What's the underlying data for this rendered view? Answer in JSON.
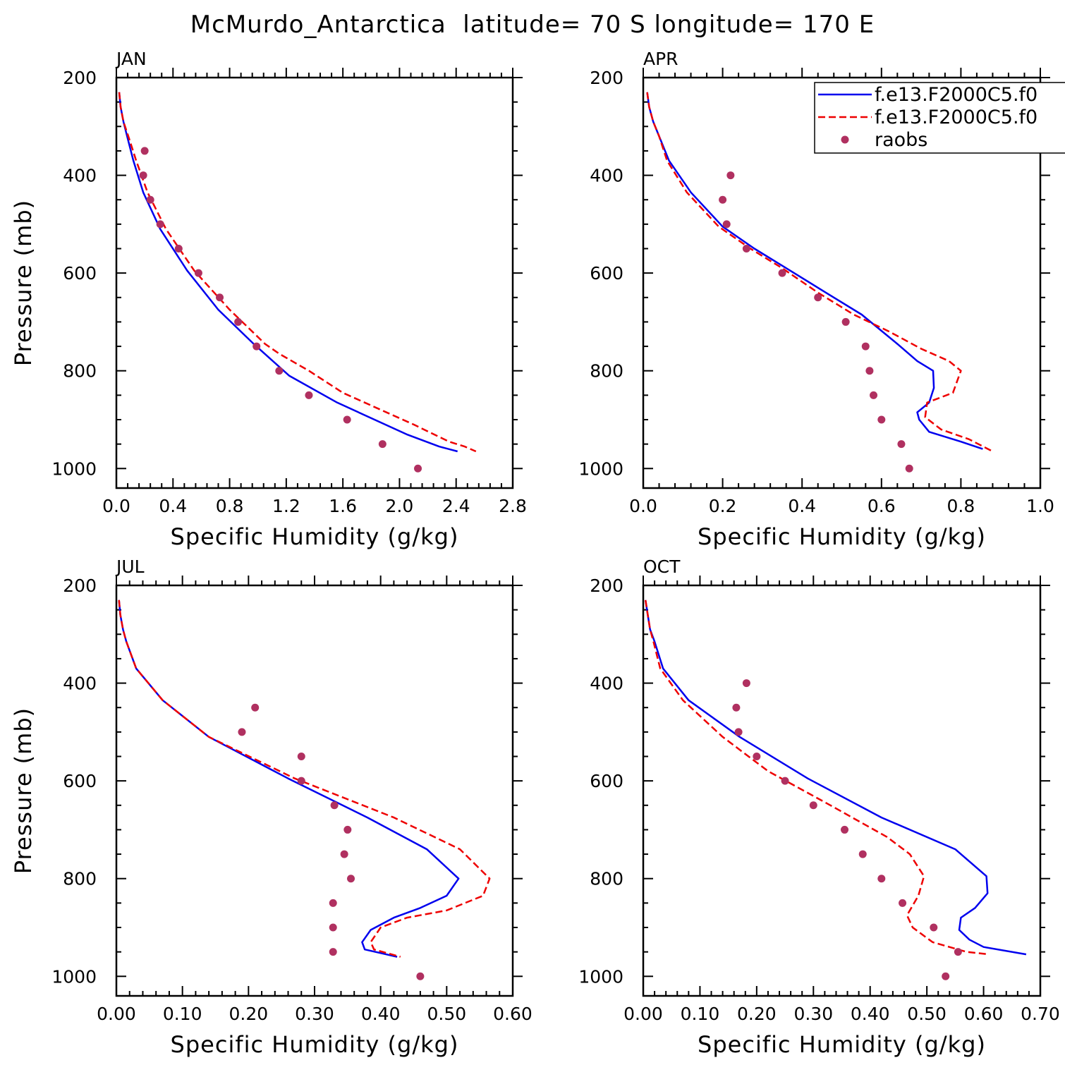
{
  "page": {
    "title": "McMurdo_Antarctica  latitude= 70 S longitude= 170 E"
  },
  "legend": {
    "entries": [
      {
        "label": "f.e13.F2000C5.f0",
        "style": "solid",
        "color": "#0000ee"
      },
      {
        "label": "f.e13.F2000C5.f0",
        "style": "dashed",
        "color": "#ee0000"
      },
      {
        "label": "raobs",
        "style": "marker",
        "color": "#b03060"
      }
    ]
  },
  "chart_data": [
    {
      "type": "line",
      "panel_label": "JAN",
      "xlabel": "Specific Humidity (g/kg)",
      "ylabel": "Pressure (mb)",
      "xlim": [
        0,
        2.8
      ],
      "ylim": [
        200,
        1000
      ],
      "y_inverted": true,
      "xticks": [
        "0.0",
        "0.4",
        "0.8",
        "1.2",
        "1.6",
        "2.0",
        "2.4",
        "2.8"
      ],
      "yticks": [
        "200",
        "400",
        "600",
        "800",
        "1000"
      ],
      "series": [
        {
          "style": "solid",
          "color": "#0000ee",
          "x": [
            0.02,
            0.03,
            0.05,
            0.08,
            0.12,
            0.19,
            0.31,
            0.5,
            0.72,
            0.97,
            1.22,
            1.56,
            2.05,
            2.28,
            2.41
          ],
          "y": [
            230,
            260,
            290,
            325,
            370,
            435,
            510,
            595,
            675,
            745,
            810,
            865,
            930,
            955,
            965
          ]
        },
        {
          "style": "dashed",
          "color": "#ee0000",
          "x": [
            0.02,
            0.03,
            0.05,
            0.09,
            0.14,
            0.22,
            0.35,
            0.55,
            0.8,
            1.05,
            1.15,
            1.36,
            1.6,
            2.1,
            2.35,
            2.46,
            2.54
          ],
          "y": [
            230,
            260,
            290,
            325,
            370,
            435,
            510,
            595,
            675,
            745,
            765,
            800,
            845,
            910,
            945,
            955,
            965
          ]
        },
        {
          "style": "marker",
          "color": "#b03060",
          "x": [
            0.2,
            0.19,
            0.24,
            0.31,
            0.44,
            0.58,
            0.73,
            0.86,
            0.99,
            1.15,
            1.36,
            1.63,
            1.88,
            2.13
          ],
          "y": [
            350,
            400,
            450,
            500,
            550,
            600,
            650,
            700,
            750,
            800,
            850,
            900,
            950,
            1000
          ]
        }
      ]
    },
    {
      "type": "line",
      "panel_label": "APR",
      "xlabel": "Specific Humidity (g/kg)",
      "ylabel": "",
      "xlim": [
        0,
        1.0
      ],
      "ylim": [
        200,
        1000
      ],
      "y_inverted": true,
      "xticks": [
        "0.0",
        "0.2",
        "0.4",
        "0.6",
        "0.8",
        "1.0"
      ],
      "yticks": [
        "200",
        "400",
        "600",
        "800",
        "1000"
      ],
      "series": [
        {
          "style": "solid",
          "color": "#0000ee",
          "x": [
            0.01,
            0.015,
            0.025,
            0.04,
            0.065,
            0.12,
            0.2,
            0.28,
            0.36,
            0.46,
            0.55,
            0.64,
            0.69,
            0.73,
            0.732,
            0.72,
            0.69,
            0.695,
            0.72,
            0.8,
            0.855
          ],
          "y": [
            230,
            260,
            290,
            320,
            370,
            435,
            505,
            550,
            590,
            640,
            685,
            745,
            780,
            800,
            835,
            865,
            885,
            900,
            925,
            945,
            960
          ]
        },
        {
          "style": "dashed",
          "color": "#ee0000",
          "x": [
            0.01,
            0.015,
            0.025,
            0.04,
            0.06,
            0.11,
            0.19,
            0.27,
            0.35,
            0.44,
            0.53,
            0.62,
            0.7,
            0.77,
            0.8,
            0.78,
            0.715,
            0.71,
            0.75,
            0.82,
            0.88
          ],
          "y": [
            230,
            260,
            290,
            320,
            370,
            435,
            505,
            550,
            590,
            640,
            685,
            720,
            755,
            780,
            800,
            845,
            865,
            895,
            920,
            940,
            965
          ]
        },
        {
          "style": "marker",
          "color": "#b03060",
          "x": [
            0.22,
            0.2,
            0.21,
            0.26,
            0.35,
            0.44,
            0.51,
            0.56,
            0.57,
            0.58,
            0.6,
            0.65,
            0.67
          ],
          "y": [
            400,
            450,
            500,
            550,
            600,
            650,
            700,
            750,
            800,
            850,
            900,
            950,
            1000
          ]
        }
      ]
    },
    {
      "type": "line",
      "panel_label": "JUL",
      "xlabel": "Specific Humidity (g/kg)",
      "ylabel": "Pressure (mb)",
      "xlim": [
        0,
        0.6
      ],
      "ylim": [
        200,
        1000
      ],
      "y_inverted": true,
      "xticks": [
        "0.00",
        "0.10",
        "0.20",
        "0.30",
        "0.40",
        "0.50",
        "0.60"
      ],
      "yticks": [
        "200",
        "400",
        "600",
        "800",
        "1000"
      ],
      "series": [
        {
          "style": "solid",
          "color": "#0000ee",
          "x": [
            0.004,
            0.006,
            0.01,
            0.015,
            0.03,
            0.07,
            0.14,
            0.26,
            0.38,
            0.47,
            0.518,
            0.5,
            0.46,
            0.42,
            0.385,
            0.372,
            0.376,
            0.425
          ],
          "y": [
            230,
            260,
            290,
            315,
            370,
            435,
            510,
            595,
            675,
            740,
            800,
            835,
            860,
            880,
            905,
            930,
            945,
            960
          ]
        },
        {
          "style": "dashed",
          "color": "#ee0000",
          "x": [
            0.004,
            0.006,
            0.01,
            0.015,
            0.03,
            0.07,
            0.14,
            0.27,
            0.42,
            0.52,
            0.565,
            0.555,
            0.5,
            0.44,
            0.4,
            0.385,
            0.39,
            0.43
          ],
          "y": [
            230,
            260,
            290,
            315,
            370,
            435,
            510,
            595,
            675,
            740,
            800,
            835,
            865,
            880,
            900,
            930,
            945,
            960
          ]
        },
        {
          "style": "marker",
          "color": "#b03060",
          "x": [
            0.21,
            0.19,
            0.28,
            0.28,
            0.33,
            0.35,
            0.345,
            0.355,
            0.328,
            0.328,
            0.328,
            0.46
          ],
          "y": [
            450,
            500,
            550,
            600,
            650,
            700,
            750,
            800,
            850,
            900,
            950,
            1000
          ]
        }
      ]
    },
    {
      "type": "line",
      "panel_label": "OCT",
      "xlabel": "Specific Humidity (g/kg)",
      "ylabel": "",
      "xlim": [
        0,
        0.7
      ],
      "ylim": [
        200,
        1000
      ],
      "y_inverted": true,
      "xticks": [
        "0.00",
        "0.10",
        "0.20",
        "0.30",
        "0.40",
        "0.50",
        "0.60",
        "0.70"
      ],
      "yticks": [
        "200",
        "400",
        "600",
        "800",
        "1000"
      ],
      "series": [
        {
          "style": "solid",
          "color": "#0000ee",
          "x": [
            0.004,
            0.008,
            0.012,
            0.02,
            0.035,
            0.08,
            0.17,
            0.29,
            0.42,
            0.55,
            0.605,
            0.607,
            0.585,
            0.56,
            0.557,
            0.575,
            0.6,
            0.675
          ],
          "y": [
            230,
            260,
            290,
            315,
            370,
            435,
            510,
            595,
            675,
            740,
            795,
            830,
            860,
            880,
            905,
            925,
            940,
            955
          ]
        },
        {
          "style": "dashed",
          "color": "#ee0000",
          "x": [
            0.004,
            0.008,
            0.012,
            0.018,
            0.03,
            0.07,
            0.14,
            0.22,
            0.33,
            0.43,
            0.47,
            0.495,
            0.485,
            0.465,
            0.475,
            0.51,
            0.57,
            0.61
          ],
          "y": [
            230,
            260,
            290,
            315,
            370,
            435,
            510,
            580,
            650,
            715,
            750,
            795,
            835,
            875,
            900,
            930,
            950,
            955
          ]
        },
        {
          "style": "marker",
          "color": "#b03060",
          "x": [
            0.182,
            0.164,
            0.168,
            0.2,
            0.25,
            0.3,
            0.355,
            0.387,
            0.42,
            0.457,
            0.512,
            0.555,
            0.533
          ],
          "y": [
            400,
            450,
            500,
            550,
            600,
            650,
            700,
            750,
            800,
            850,
            900,
            950,
            1000
          ]
        }
      ]
    }
  ]
}
